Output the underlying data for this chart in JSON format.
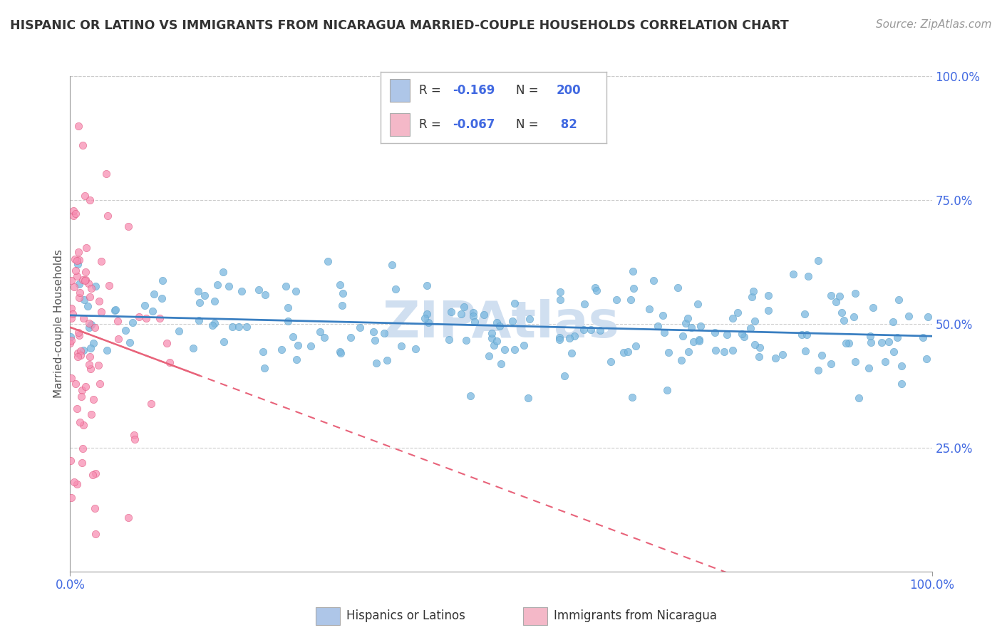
{
  "title": "HISPANIC OR LATINO VS IMMIGRANTS FROM NICARAGUA MARRIED-COUPLE HOUSEHOLDS CORRELATION CHART",
  "source": "Source: ZipAtlas.com",
  "ylabel": "Married-couple Households",
  "legend_box1_color": "#aec6e8",
  "legend_box2_color": "#f4b8c8",
  "legend1_label": "Hispanics or Latinos",
  "legend2_label": "Immigrants from Nicaragua",
  "R1": -0.169,
  "N1": 200,
  "R2": -0.067,
  "N2": 82,
  "scatter1_color": "#7ab8e0",
  "scatter2_color": "#f78fb3",
  "scatter1_edge": "#5a9fc8",
  "scatter2_edge": "#e05880",
  "line1_color": "#3a7fc1",
  "line2_color": "#e8637a",
  "watermark": "ZIPAtlas",
  "watermark_color": "#d0dff0",
  "background_color": "#ffffff",
  "grid_color": "#cccccc",
  "title_color": "#333333",
  "tick_color": "#4169e1",
  "axis_color": "#999999"
}
